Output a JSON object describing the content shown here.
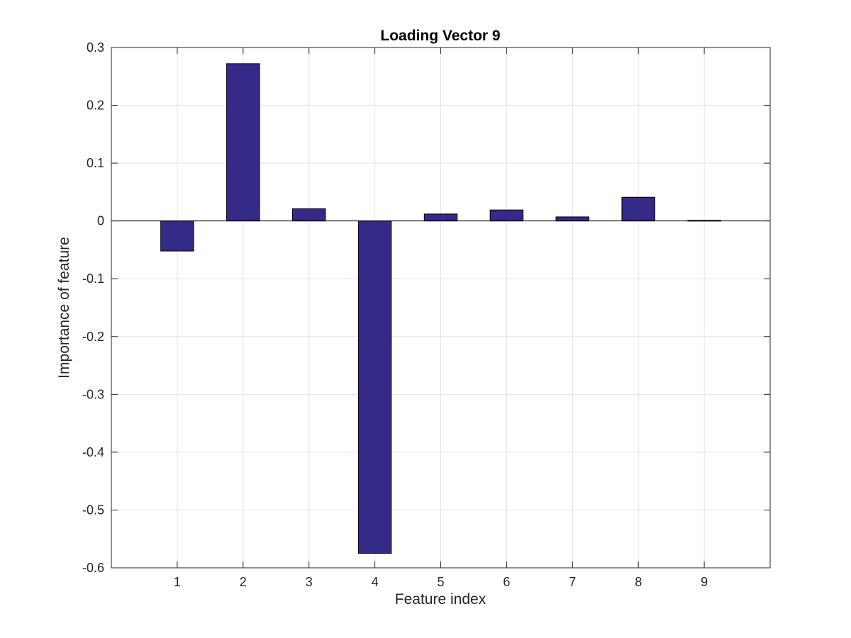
{
  "chart_data": {
    "type": "bar",
    "title": "Loading Vector 9",
    "xlabel": "Feature index",
    "ylabel": "Importance of feature",
    "categories": [
      "1",
      "2",
      "3",
      "4",
      "5",
      "6",
      "7",
      "8",
      "9"
    ],
    "values": [
      -0.052,
      0.272,
      0.021,
      -0.575,
      0.012,
      0.019,
      0.007,
      0.041,
      0.001
    ],
    "ylim": [
      -0.6,
      0.3
    ],
    "xlim": [
      0,
      10
    ],
    "yticks": [
      0.3,
      0.2,
      0.1,
      0,
      -0.1,
      -0.2,
      -0.3,
      -0.4,
      -0.5,
      -0.6
    ],
    "ytick_labels": [
      "0.3",
      "0.2",
      "0.1",
      "0",
      "-0.1",
      "-0.2",
      "-0.3",
      "-0.4",
      "-0.5",
      "-0.6"
    ],
    "grid": true,
    "legend": "none",
    "bar_color": "#352a87"
  }
}
